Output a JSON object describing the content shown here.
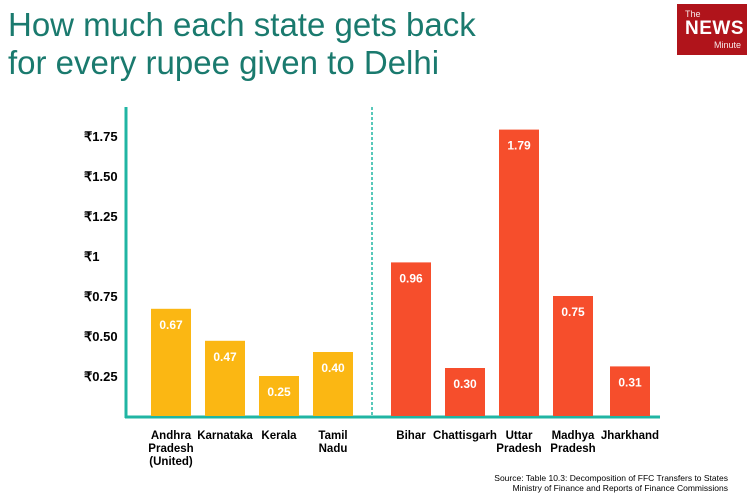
{
  "header": {
    "title_line1": "How much each state gets back",
    "title_line2": "for every rupee given to Delhi"
  },
  "logo": {
    "the": "The",
    "news": "NEWS",
    "minute": "Minute"
  },
  "source": {
    "line1": "Source: Table 10.3: Decomposition of FFC Transfers to States",
    "line2": "Ministry of Finance and Reports of Finance Commissions"
  },
  "colors": {
    "title": "#1a7a6e",
    "axis": "#20b5a3",
    "south": "#fbb713",
    "north": "#f64e2c",
    "logo": "#b0141b"
  },
  "chart_data": {
    "type": "bar",
    "categories": [
      [
        "Andhra",
        "Pradesh",
        "(United)"
      ],
      [
        "Karnataka"
      ],
      [
        "Kerala"
      ],
      [
        "Tamil",
        "Nadu"
      ],
      [
        "Bihar"
      ],
      [
        "Chattisgarh"
      ],
      [
        "Uttar",
        "Pradesh"
      ],
      [
        "Madhya",
        "Pradesh"
      ],
      [
        "Jharkhand"
      ]
    ],
    "values": [
      0.67,
      0.47,
      0.25,
      0.4,
      0.96,
      0.3,
      1.79,
      0.75,
      0.31
    ],
    "value_labels": [
      "0.67",
      "0.47",
      "0.25",
      "0.40",
      "0.96",
      "0.30",
      "1.79",
      "0.75",
      "0.31"
    ],
    "groups": [
      "south",
      "south",
      "south",
      "south",
      "north",
      "north",
      "north",
      "north",
      "north"
    ],
    "yticks": [
      0.25,
      0.5,
      0.75,
      1,
      1.25,
      1.5,
      1.75
    ],
    "ytick_labels": [
      "₹0.25",
      "₹0.50",
      "₹0.75",
      "₹1",
      "₹1.25",
      "₹1.50",
      "₹1.75"
    ],
    "ylim": [
      0,
      1.85
    ],
    "grid": false,
    "divider_between": [
      3,
      4
    ]
  }
}
